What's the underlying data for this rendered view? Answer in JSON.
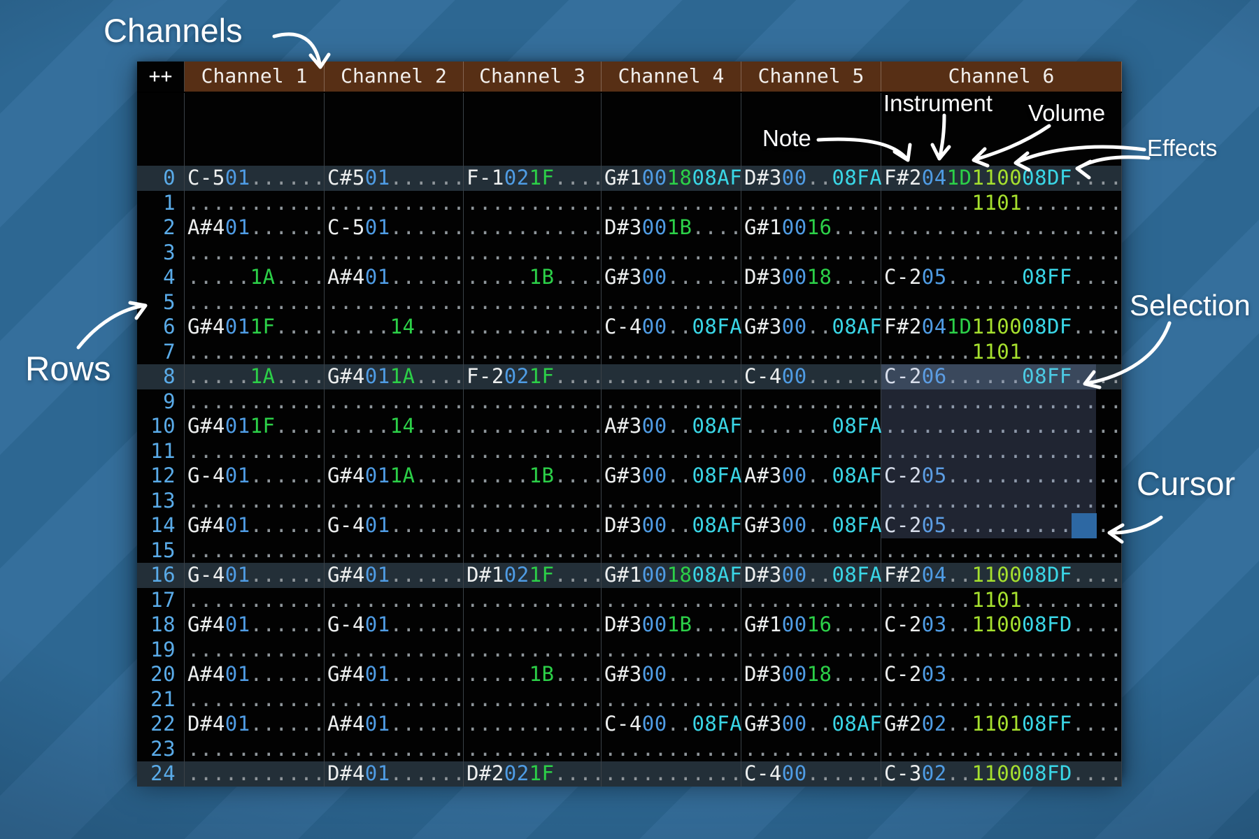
{
  "annotations": {
    "channels": "Channels",
    "rows": "Rows",
    "note": "Note",
    "instrument": "Instrument",
    "volume": "Volume",
    "effects": "Effects",
    "selection": "Selection",
    "cursor": "Cursor"
  },
  "header": {
    "corner": "++",
    "channels": [
      "Channel 1",
      "Channel 2",
      "Channel 3",
      "Channel 4",
      "Channel 5",
      "Channel 6"
    ]
  },
  "colors": {
    "note": "#eceeee",
    "inst": "#4f9ce4",
    "vol": "#2cd048",
    "fx": "#3ad6e6",
    "lime": "#a6e02e",
    "dot": "#8f969b",
    "rownum": "#5aabe8",
    "header_bg": "#572f15",
    "cursor": "#2d68a3",
    "background_light": "#356f9c",
    "background_dark": "#2d6792"
  },
  "pattern": {
    "rows": [
      {
        "n": "0",
        "c": [
          "C-501......",
          "C#501......",
          "F-1021F....",
          "G#1001808AF",
          "D#300..08FA",
          "F#2041D110008DF...."
        ]
      },
      {
        "n": "1",
        "c": [
          "...........",
          "...........",
          "...........",
          "...........",
          "...........",
          ".......1101........"
        ]
      },
      {
        "n": "2",
        "c": [
          "A#401......",
          "C-501......",
          "...........",
          "D#3001B....",
          "G#10016....",
          "..................."
        ]
      },
      {
        "n": "3",
        "c": [
          "...........",
          "...........",
          "...........",
          "...........",
          "...........",
          "..................."
        ]
      },
      {
        "n": "4",
        "c": [
          ".....1A....",
          "A#401......",
          ".....1B....",
          "G#300......",
          "D#30018....",
          "C-205......08FF...."
        ]
      },
      {
        "n": "5",
        "c": [
          "...........",
          "...........",
          "...........",
          "...........",
          "...........",
          "..................."
        ]
      },
      {
        "n": "6",
        "c": [
          "G#4011F....",
          ".....14....",
          "...........",
          "C-400..08FA",
          "G#300..08AF",
          "F#2041D110008DF...."
        ]
      },
      {
        "n": "7",
        "c": [
          "...........",
          "...........",
          "...........",
          "...........",
          "...........",
          ".......1101........"
        ]
      },
      {
        "n": "8",
        "c": [
          ".....1A....",
          "G#4011A....",
          "F-2021F....",
          "...........",
          "C-400......",
          "C-206......08FF...."
        ]
      },
      {
        "n": "9",
        "c": [
          "...........",
          "...........",
          "...........",
          "...........",
          "...........",
          "..................."
        ]
      },
      {
        "n": "10",
        "c": [
          "G#4011F....",
          ".....14....",
          "...........",
          "A#300..08AF",
          ".......08FA",
          "..................."
        ]
      },
      {
        "n": "11",
        "c": [
          "...........",
          "...........",
          "...........",
          "...........",
          "...........",
          "..................."
        ]
      },
      {
        "n": "12",
        "c": [
          "G-401......",
          "G#4011A....",
          ".....1B....",
          "G#300..08FA",
          "A#300..08AF",
          "C-205.............."
        ]
      },
      {
        "n": "13",
        "c": [
          "...........",
          "...........",
          "...........",
          "...........",
          "...........",
          "..................."
        ]
      },
      {
        "n": "14",
        "c": [
          "G#401......",
          "G-401......",
          "...........",
          "D#300..08AF",
          "G#300..08FA",
          "C-205.............."
        ]
      },
      {
        "n": "15",
        "c": [
          "...........",
          "...........",
          "...........",
          "...........",
          "...........",
          "..................."
        ]
      },
      {
        "n": "16",
        "c": [
          "G-401......",
          "G#401......",
          "D#1021F....",
          "G#1001808AF",
          "D#300..08FA",
          "F#204..110008DF...."
        ]
      },
      {
        "n": "17",
        "c": [
          "...........",
          "...........",
          "...........",
          "...........",
          "...........",
          ".......1101........"
        ]
      },
      {
        "n": "18",
        "c": [
          "G#401......",
          "G-401......",
          "...........",
          "D#3001B....",
          "G#10016....",
          "C-203..110008FD...."
        ]
      },
      {
        "n": "19",
        "c": [
          "...........",
          "...........",
          "...........",
          "...........",
          "...........",
          "..................."
        ]
      },
      {
        "n": "20",
        "c": [
          "A#401......",
          "G#401......",
          ".....1B....",
          "G#300......",
          "D#30018....",
          "C-203.............."
        ]
      },
      {
        "n": "21",
        "c": [
          "...........",
          "...........",
          "...........",
          "...........",
          "...........",
          "..................."
        ]
      },
      {
        "n": "22",
        "c": [
          "D#401......",
          "A#401......",
          "...........",
          "C-400..08FA",
          "G#300..08AF",
          "G#202..110108FF...."
        ]
      },
      {
        "n": "23",
        "c": [
          "...........",
          "...........",
          "...........",
          "...........",
          "...........",
          "..................."
        ]
      },
      {
        "n": "24",
        "c": [
          "...........",
          "D#401......",
          "D#2021F....",
          "...........",
          "C-400......",
          "C-302..110008FD...."
        ]
      }
    ]
  }
}
